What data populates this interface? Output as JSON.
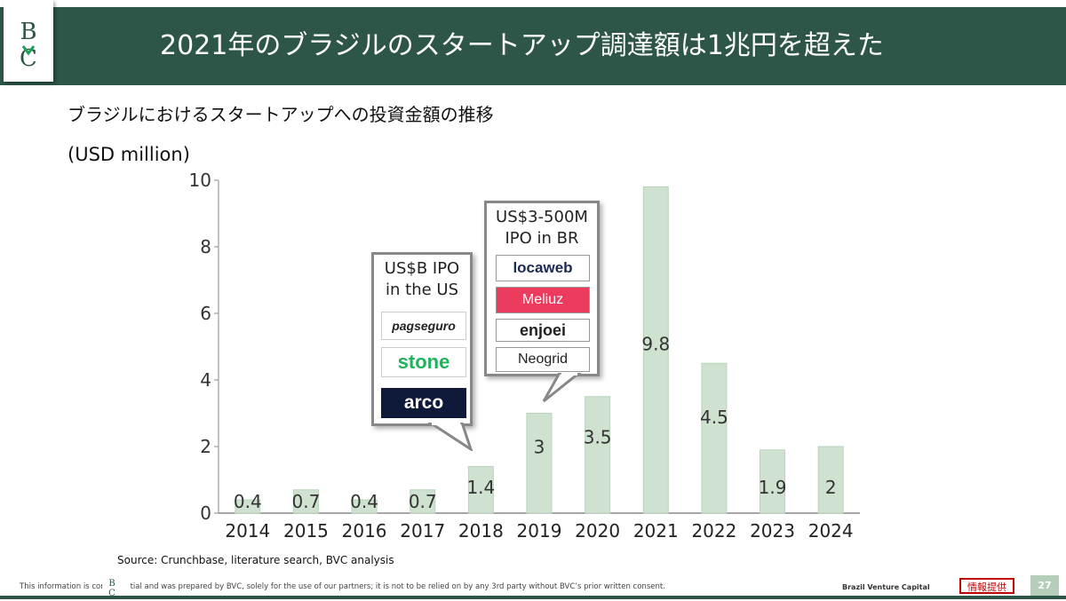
{
  "header": {
    "title": "2021年のブラジルのスタートアップ調達額は1兆円を超えた",
    "logo_text": "BC",
    "accent_color": "#2d5649"
  },
  "subtitle": "ブラジルにおけるスタートアップへの投資金額の推移",
  "unit_label": "(USD million)",
  "chart_data": {
    "type": "bar",
    "categories": [
      "2014",
      "2015",
      "2016",
      "2017",
      "2018",
      "2019",
      "2020",
      "2021",
      "2022",
      "2023",
      "2024"
    ],
    "values": [
      0.4,
      0.7,
      0.4,
      0.7,
      1.4,
      3,
      3.5,
      9.8,
      4.5,
      1.9,
      2
    ],
    "data_labels": [
      "0.4",
      "0.7",
      "0.4",
      "0.7",
      "1.4",
      "3",
      "3.5",
      "9.8",
      "4.5",
      "1.9",
      "2"
    ],
    "ylim": [
      0,
      10
    ],
    "yticks": [
      "0",
      "2",
      "4",
      "6",
      "8",
      "10"
    ],
    "bar_color": "#cfe2d0",
    "bar_edge_color": "#b8d3bb",
    "grid": false,
    "annotations": [
      {
        "text_line1": "US$B IPO",
        "text_line2": "in the US",
        "logos": [
          {
            "name": "pagseguro-logo",
            "text": "pagseguro",
            "bg": "#ffffff",
            "color": "#333333"
          },
          {
            "name": "stone-logo",
            "text": "stone",
            "bg": "#ffffff",
            "color": "#1fb25a"
          },
          {
            "name": "arco-logo",
            "text": "arco",
            "bg": "#0f1a3a",
            "color": "#ffffff"
          }
        ]
      },
      {
        "text_line1": "US$3-500M",
        "text_line2": "IPO in BR",
        "logos": [
          {
            "name": "locaweb-logo",
            "text": "locaweb",
            "bg": "#ffffff",
            "color": "#1b2a55"
          },
          {
            "name": "meliuz-logo",
            "text": "Meliuz",
            "bg": "#ec3b5c",
            "color": "#ffffff"
          },
          {
            "name": "enjoei-logo",
            "text": "enjoei",
            "bg": "#ffffff",
            "color": "#222222"
          },
          {
            "name": "neogrid-logo",
            "text": "Neogrid",
            "bg": "#ffffff",
            "color": "#222222"
          }
        ]
      }
    ]
  },
  "source": "Source: Crunchbase, literature search, BVC analysis",
  "footer": {
    "note_left": "This information is con",
    "note_right": "tial and was prepared by BVC, solely for the use of our partners; it is not to be relied on by any 3rd party without BVC’s prior written consent.",
    "brand": "Brazil Venture Capital",
    "badge": "情報提供",
    "page_number": "27"
  }
}
